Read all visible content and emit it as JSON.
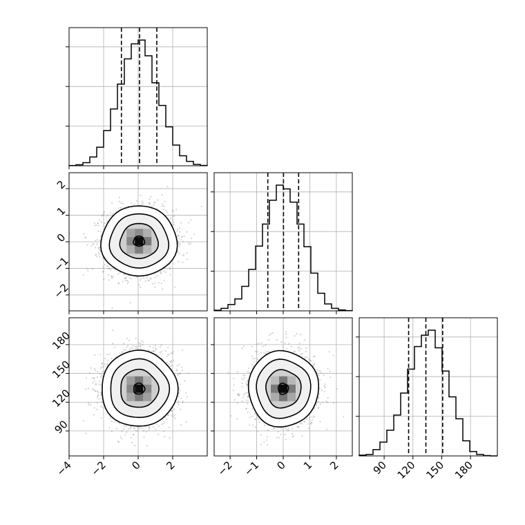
{
  "chart_data": {
    "type": "corner",
    "layout": "3x3 lower-triangular matrix; marginal histograms on the diagonal, 2D density contours below",
    "grid": true,
    "parameters": [
      {
        "range": [
          -4,
          4
        ],
        "ticks": [
          -4,
          -2,
          0,
          2
        ],
        "tick_labels": [
          "−4",
          "−2",
          "0",
          "2"
        ]
      },
      {
        "range": [
          -2.6,
          2.6
        ],
        "ticks": [
          -2,
          -1,
          0,
          1,
          2
        ],
        "tick_labels": [
          "−2",
          "−1",
          "0",
          "1",
          "2"
        ]
      },
      {
        "range": [
          64,
          208
        ],
        "ticks": [
          90,
          120,
          150,
          180
        ],
        "tick_labels": [
          "90",
          "120",
          "150",
          "180"
        ]
      }
    ],
    "histograms": [
      {
        "parameter": 0,
        "bin_edges": [
          -4.0,
          -3.6,
          -3.2,
          -2.8,
          -2.4,
          -2.0,
          -1.6,
          -1.2,
          -0.8,
          -0.4,
          0.0,
          0.4,
          0.8,
          1.2,
          1.6,
          2.0,
          2.4,
          2.8,
          3.2,
          3.6,
          4.0
        ],
        "counts": [
          0.002,
          0.008,
          0.025,
          0.07,
          0.148,
          0.28,
          0.452,
          0.65,
          0.85,
          0.97,
          1.0,
          0.875,
          0.66,
          0.48,
          0.31,
          0.165,
          0.08,
          0.035,
          0.011,
          0.003
        ],
        "quantiles": [
          -0.97,
          0.08,
          1.08
        ]
      },
      {
        "parameter": 1,
        "bin_edges": [
          -2.6,
          -2.34,
          -2.08,
          -1.82,
          -1.56,
          -1.3,
          -1.04,
          -0.78,
          -0.52,
          -0.26,
          0.0,
          0.26,
          0.52,
          0.78,
          1.04,
          1.3,
          1.56,
          1.82,
          2.08,
          2.34,
          2.6
        ],
        "counts": [
          0.005,
          0.02,
          0.05,
          0.095,
          0.195,
          0.33,
          0.515,
          0.69,
          0.88,
          1.0,
          0.97,
          0.865,
          0.69,
          0.51,
          0.3,
          0.14,
          0.055,
          0.02,
          0.007,
          0.002
        ],
        "quantiles": [
          -0.58,
          0.01,
          0.58
        ]
      },
      {
        "parameter": 2,
        "bin_edges": [
          64.0,
          71.2,
          78.4,
          85.6,
          92.8,
          100.0,
          107.2,
          114.4,
          121.6,
          128.8,
          136.0,
          143.2,
          150.4,
          157.6,
          164.8,
          172.0,
          179.2,
          186.4,
          193.6,
          200.8,
          208.0
        ],
        "counts": [
          0.006,
          0.012,
          0.05,
          0.11,
          0.205,
          0.325,
          0.5,
          0.69,
          0.87,
          0.96,
          1.0,
          0.86,
          0.675,
          0.47,
          0.295,
          0.12,
          0.035,
          0.012,
          0.003,
          0.0
        ],
        "quantiles": [
          115.5,
          133.5,
          151.0
        ]
      }
    ],
    "pairs": [
      {
        "x_param": 0,
        "y_param": 1,
        "center": [
          0.05,
          0.02
        ],
        "spread": [
          1.0,
          0.6
        ]
      },
      {
        "x_param": 0,
        "y_param": 2,
        "center": [
          0.05,
          134
        ],
        "spread": [
          1.0,
          18
        ]
      },
      {
        "x_param": 1,
        "y_param": 2,
        "center": [
          0.0,
          134
        ],
        "spread": [
          0.6,
          18
        ]
      }
    ]
  }
}
